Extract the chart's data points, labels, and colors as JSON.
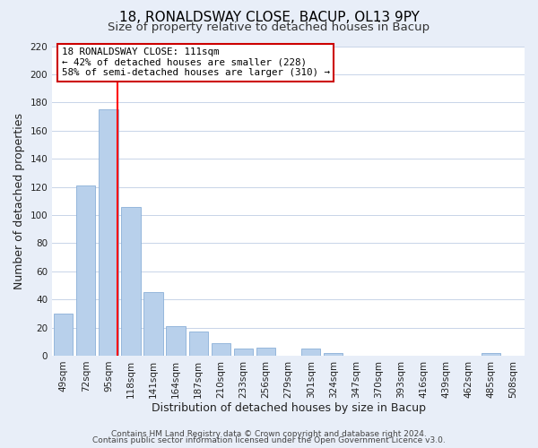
{
  "title": "18, RONALDSWAY CLOSE, BACUP, OL13 9PY",
  "subtitle": "Size of property relative to detached houses in Bacup",
  "xlabel": "Distribution of detached houses by size in Bacup",
  "ylabel": "Number of detached properties",
  "bar_labels": [
    "49sqm",
    "72sqm",
    "95sqm",
    "118sqm",
    "141sqm",
    "164sqm",
    "187sqm",
    "210sqm",
    "233sqm",
    "256sqm",
    "279sqm",
    "301sqm",
    "324sqm",
    "347sqm",
    "370sqm",
    "393sqm",
    "416sqm",
    "439sqm",
    "462sqm",
    "485sqm",
    "508sqm"
  ],
  "bar_values": [
    30,
    121,
    175,
    106,
    45,
    21,
    17,
    9,
    5,
    6,
    0,
    5,
    2,
    0,
    0,
    0,
    0,
    0,
    0,
    2,
    0
  ],
  "bar_color": "#b8d0eb",
  "bar_edge_color": "#8ab0d8",
  "ylim": [
    0,
    220
  ],
  "yticks": [
    0,
    20,
    40,
    60,
    80,
    100,
    120,
    140,
    160,
    180,
    200,
    220
  ],
  "redline_bar_index": 2,
  "redline_color": "red",
  "annotation_title": "18 RONALDSWAY CLOSE: 111sqm",
  "annotation_line1": "← 42% of detached houses are smaller (228)",
  "annotation_line2": "58% of semi-detached houses are larger (310) →",
  "annotation_box_color": "white",
  "annotation_box_edge": "#cc0000",
  "footer1": "Contains HM Land Registry data © Crown copyright and database right 2024.",
  "footer2": "Contains public sector information licensed under the Open Government Licence v3.0.",
  "bg_color": "#e8eef8",
  "plot_bg_color": "white",
  "grid_color": "#c8d4e8",
  "title_fontsize": 11,
  "subtitle_fontsize": 9.5,
  "label_fontsize": 9,
  "tick_fontsize": 7.5,
  "footer_fontsize": 6.5
}
